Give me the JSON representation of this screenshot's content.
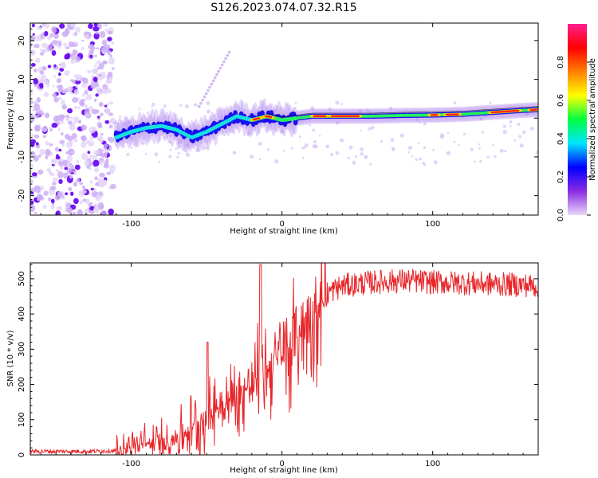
{
  "title": "S126.2023.074.07.32.R15",
  "chart_data": [
    {
      "type": "heatmap",
      "xlabel": "Height of straight line (km)",
      "ylabel": "Frequency (Hz)",
      "xlim": [
        -167,
        170
      ],
      "ylim": [
        -25,
        24.5
      ],
      "xticks": [
        -100,
        0,
        100
      ],
      "yticks": [
        -20,
        -10,
        0,
        10,
        20
      ],
      "colorbar": {
        "label": "Normalized spectral amplitude",
        "range": [
          0,
          1
        ],
        "ticks": [
          "0.0",
          "0.2",
          "0.4",
          "0.6",
          "0.8"
        ],
        "colors": [
          "#e8d8f8",
          "#8a2be2",
          "#0000ff",
          "#00e5ff",
          "#00ff40",
          "#ffff00",
          "#ff8000",
          "#ff0000",
          "#ff1f8f"
        ]
      },
      "ridge": {
        "x": [
          -110,
          -100,
          -90,
          -80,
          -70,
          -60,
          -50,
          -40,
          -30,
          -20,
          -10,
          0,
          10,
          20,
          40,
          60,
          80,
          100,
          120,
          140,
          160,
          170
        ],
        "y": [
          -5,
          -3.5,
          -2.5,
          -2,
          -3,
          -5,
          -3.5,
          -1.5,
          0.5,
          -0.5,
          0.5,
          -0.5,
          0,
          0.5,
          0.5,
          0.5,
          0.7,
          0.8,
          1,
          1.5,
          2,
          2.2
        ]
      },
      "noise_region_x": [
        -167,
        -112
      ]
    },
    {
      "type": "line",
      "xlabel": "Height of straight line (km)",
      "ylabel": "SNR (10 * v/v)",
      "xlim": [
        -167,
        170
      ],
      "ylim": [
        0,
        545
      ],
      "xticks": [
        -100,
        0,
        100
      ],
      "yticks": [
        0,
        100,
        200,
        300,
        400,
        500
      ],
      "color": "#e8262a",
      "series": [
        {
          "x": [
            -167,
            -150,
            -130,
            -110,
            -100,
            -90,
            -80,
            -70,
            -60,
            -50,
            -40,
            -30,
            -20,
            -10,
            0,
            10,
            20,
            30,
            40,
            60,
            80,
            100,
            120,
            140,
            160,
            170
          ],
          "y": [
            10,
            10,
            10,
            12,
            25,
            30,
            35,
            50,
            80,
            110,
            140,
            160,
            200,
            250,
            280,
            330,
            400,
            460,
            480,
            490,
            495,
            490,
            488,
            485,
            482,
            480
          ]
        }
      ]
    }
  ]
}
